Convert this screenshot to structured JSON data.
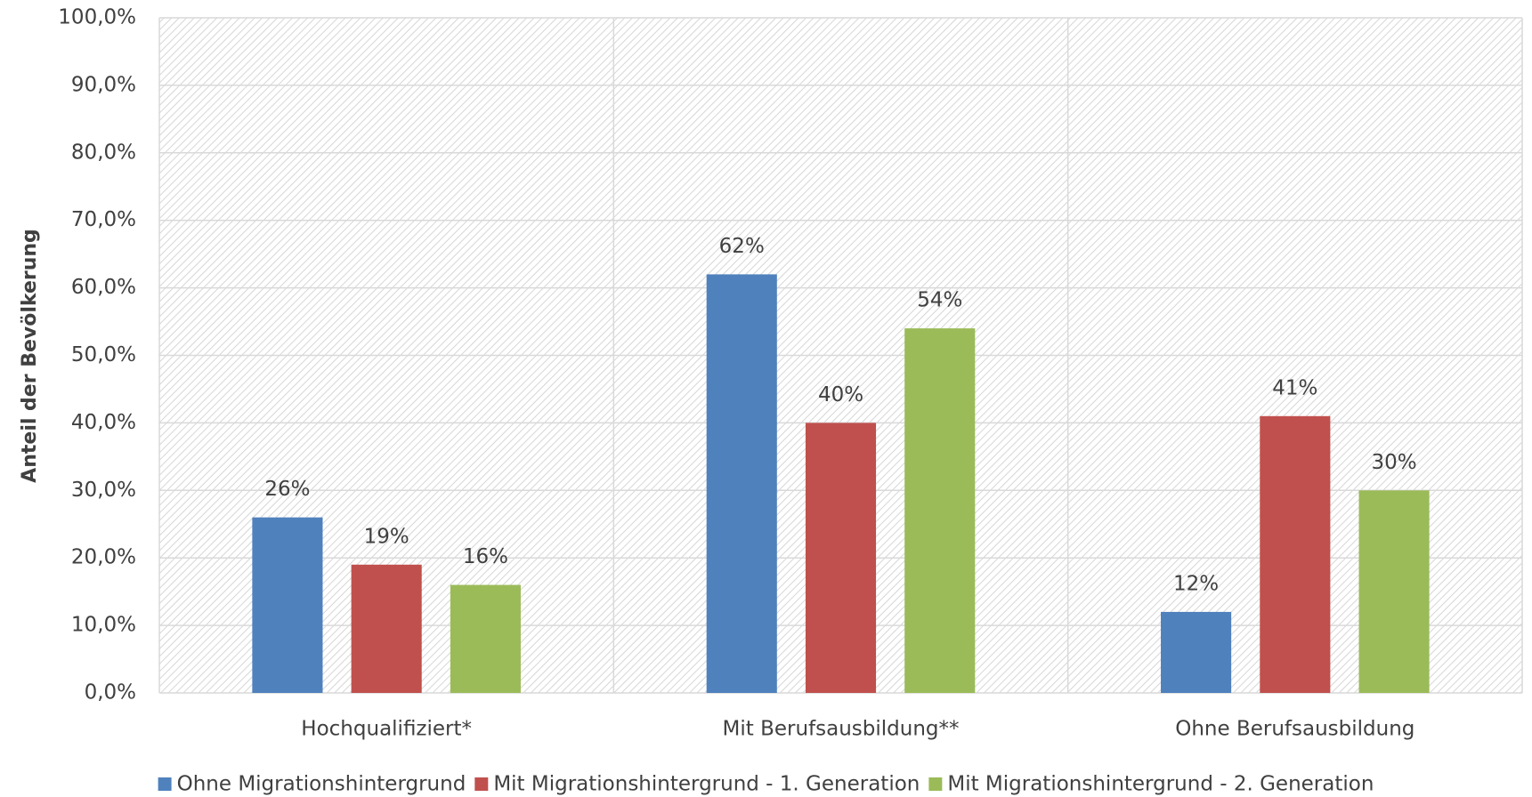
{
  "chart_data": {
    "type": "bar",
    "y_axis_label": "Anteil der Bevölkerung",
    "categories": [
      "Hochqualifiziert*",
      "Mit Berufsausbildung**",
      "Ohne Berufsausbildung"
    ],
    "series": [
      {
        "name": "Ohne Migrationshintergrund",
        "color": "#4f81bd",
        "values": [
          26,
          62,
          12
        ],
        "value_labels": [
          "26%",
          "62%",
          "12%"
        ]
      },
      {
        "name": "Mit Migrationshintergrund - 1. Generation",
        "color": "#c0504d",
        "values": [
          19,
          40,
          41
        ],
        "value_labels": [
          "19%",
          "40%",
          "41%"
        ]
      },
      {
        "name": "Mit Migrationshintergrund - 2. Generation",
        "color": "#9bbb59",
        "values": [
          16,
          54,
          30
        ],
        "value_labels": [
          "16%",
          "54%",
          "30%"
        ]
      }
    ],
    "ylim": [
      0,
      100
    ],
    "yticks": [
      {
        "value": 0,
        "label": "0,0%"
      },
      {
        "value": 10,
        "label": "10,0%"
      },
      {
        "value": 20,
        "label": "20,0%"
      },
      {
        "value": 30,
        "label": "30,0%"
      },
      {
        "value": 40,
        "label": "40,0%"
      },
      {
        "value": 50,
        "label": "50,0%"
      },
      {
        "value": 60,
        "label": "60,0%"
      },
      {
        "value": 70,
        "label": "70,0%"
      },
      {
        "value": 80,
        "label": "80,0%"
      },
      {
        "value": 90,
        "label": "90,0%"
      },
      {
        "value": 100,
        "label": "100,0%"
      }
    ],
    "grid": true,
    "legend": "bottom"
  }
}
